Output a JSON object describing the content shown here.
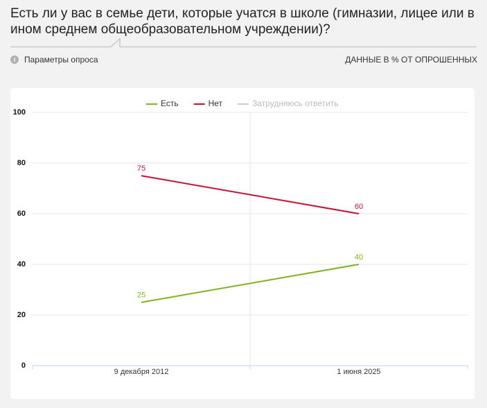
{
  "header": {
    "title": "Есть ли у вас в семье дети, которые учатся в школе (гимназии, лицее или в ином среднем общеобразовательном учреждении)?",
    "params": "Параметры опроса",
    "note": "ДАННЫЕ В % ОТ ОПРОШЕННЫХ"
  },
  "chart_data": {
    "type": "line",
    "categories": [
      "9 декабря 2012",
      "1 июня 2025"
    ],
    "series": [
      {
        "name": "Есть",
        "color": "#7ab51d",
        "values": [
          25,
          40
        ]
      },
      {
        "name": "Нет",
        "color": "#c8102e",
        "values": [
          75,
          60
        ]
      },
      {
        "name": "Затрудняюсь ответить",
        "color": "#cccccc",
        "values": [
          null,
          null
        ]
      }
    ],
    "ylim": [
      0,
      100
    ],
    "yticks": [
      0,
      20,
      40,
      60,
      80,
      100
    ],
    "grid": true
  }
}
